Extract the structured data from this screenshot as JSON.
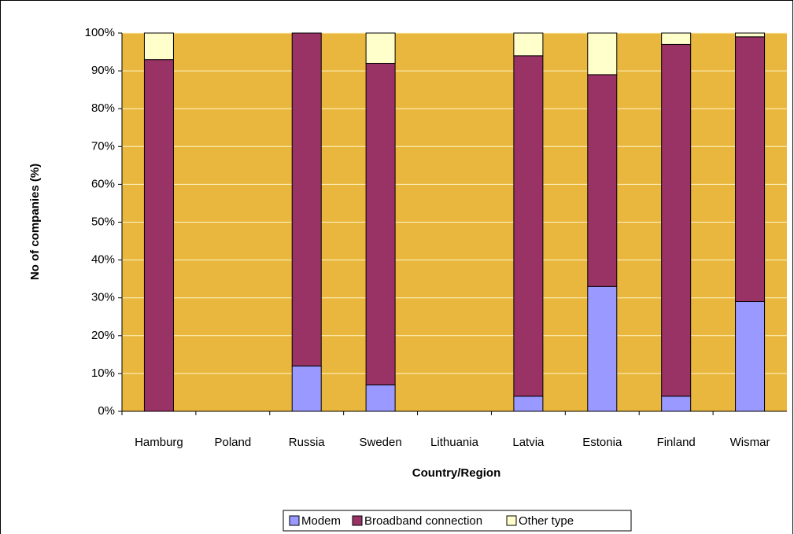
{
  "chart_data": {
    "type": "stacked_bar",
    "ylabel": "No of companies (%)",
    "xlabel": "Country/Region",
    "categories": [
      "Hamburg",
      "Poland",
      "Russia",
      "Sweden",
      "Lithuania",
      "Latvia",
      "Estonia",
      "Finland",
      "Wismar"
    ],
    "series": [
      {
        "name": "Modem",
        "color": "#9999ff",
        "values": [
          0,
          0,
          12,
          7,
          0,
          4,
          33,
          4,
          29
        ]
      },
      {
        "name": "Broadband connection",
        "color": "#993366",
        "values": [
          93,
          0,
          88,
          85,
          0,
          90,
          56,
          93,
          70
        ]
      },
      {
        "name": "Other type",
        "color": "#ffffcc",
        "values": [
          7,
          0,
          0,
          8,
          0,
          6,
          11,
          3,
          1
        ]
      }
    ],
    "ylim": [
      0,
      100
    ],
    "yticks": [
      {
        "value": 0,
        "label": "0%"
      },
      {
        "value": 10,
        "label": "10%"
      },
      {
        "value": 20,
        "label": "20%"
      },
      {
        "value": 30,
        "label": "30%"
      },
      {
        "value": 40,
        "label": "40%"
      },
      {
        "value": 50,
        "label": "50%"
      },
      {
        "value": 60,
        "label": "60%"
      },
      {
        "value": 70,
        "label": "70%"
      },
      {
        "value": 80,
        "label": "80%"
      },
      {
        "value": 90,
        "label": "90%"
      },
      {
        "value": 100,
        "label": "100%"
      }
    ],
    "grid": true,
    "background": "#e9b73d",
    "legend": "bottom"
  }
}
